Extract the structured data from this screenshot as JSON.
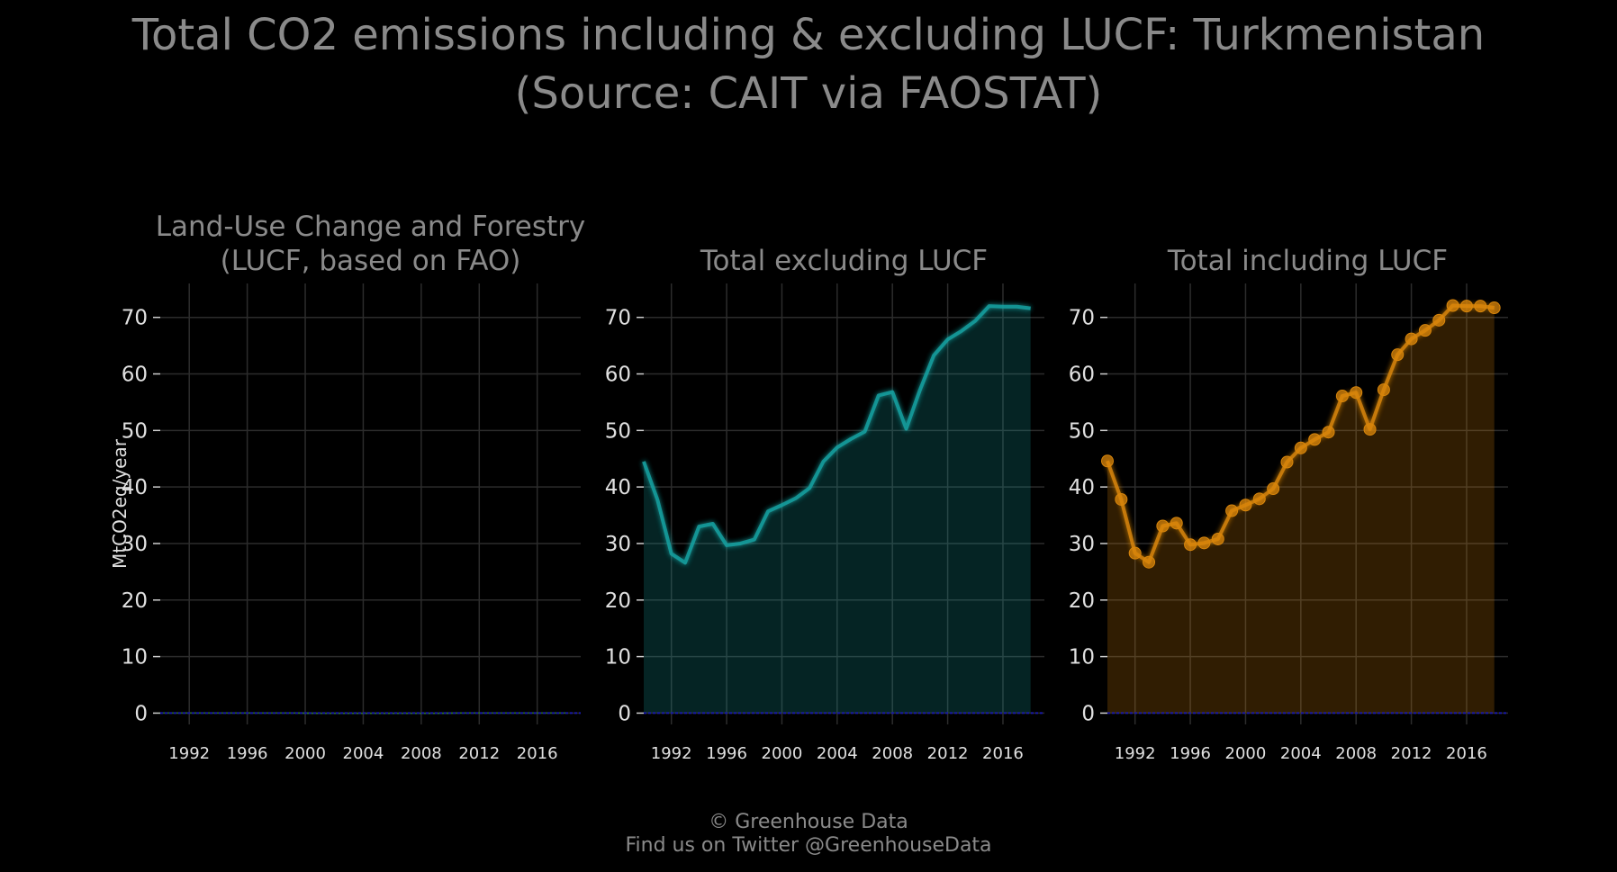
{
  "page": {
    "title_line_1": "Total CO2 emissions including & excluding LUCF: Turkmenistan",
    "title_line_2": "(Source: CAIT via FAOSTAT)",
    "footer_line_1": "© Greenhouse Data",
    "footer_line_2": "Find us on Twitter @GreenhouseData"
  },
  "colors": {
    "background": "#000000",
    "text": "#8a8a8a",
    "tick_text": "#e0e0e0",
    "grid": "#2c2c2c",
    "zero_line": "#1a1aa8",
    "lucf": "#2e7d32",
    "excl": "#17a3a3",
    "incl": "#d9860b"
  },
  "chart_data": [
    {
      "type": "area",
      "panel": "lucf",
      "title_lines": [
        "Land-Use Change and Forestry",
        "(LUCF, based on FAO)"
      ],
      "ylabel": "MtCO2eq/year",
      "xlim": [
        1990,
        2019
      ],
      "ylim": [
        -2,
        76
      ],
      "xticks": [
        1992,
        1996,
        2000,
        2004,
        2008,
        2012,
        2016
      ],
      "yticks": [
        0,
        10,
        20,
        30,
        40,
        50,
        60,
        70
      ],
      "grid": true,
      "markers": false,
      "series": [
        {
          "x": [
            1990,
            1991,
            1992,
            1993,
            1994,
            1995,
            1996,
            1997,
            1998,
            1999,
            2000,
            2001,
            2002,
            2003,
            2004,
            2005,
            2006,
            2007,
            2008,
            2009,
            2010,
            2011,
            2012,
            2013,
            2014,
            2015,
            2016,
            2017,
            2018
          ],
          "values": [
            0.1,
            0.1,
            0.1,
            0.1,
            0.1,
            0.1,
            0.1,
            0.1,
            0.1,
            0.1,
            0.0,
            -0.1,
            -0.1,
            -0.1,
            -0.1,
            -0.1,
            -0.1,
            -0.1,
            -0.1,
            -0.1,
            0.0,
            0.1,
            0.1,
            0.1,
            0.1,
            0.1,
            0.1,
            0.1,
            0.1
          ]
        }
      ]
    },
    {
      "type": "area",
      "panel": "excl",
      "title_lines": [
        "Total excluding LUCF"
      ],
      "ylabel": "",
      "xlim": [
        1990,
        2019
      ],
      "ylim": [
        -2,
        76
      ],
      "xticks": [
        1992,
        1996,
        2000,
        2004,
        2008,
        2012,
        2016
      ],
      "yticks": [
        0,
        10,
        20,
        30,
        40,
        50,
        60,
        70
      ],
      "grid": true,
      "markers": false,
      "series": [
        {
          "x": [
            1990,
            1991,
            1992,
            1993,
            1994,
            1995,
            1996,
            1997,
            1998,
            1999,
            2000,
            2001,
            2002,
            2003,
            2004,
            2005,
            2006,
            2007,
            2008,
            2009,
            2010,
            2011,
            2012,
            2013,
            2014,
            2015,
            2016,
            2017,
            2018
          ],
          "values": [
            44.5,
            37.7,
            28.2,
            26.6,
            33.0,
            33.5,
            29.7,
            30.0,
            30.7,
            35.7,
            36.8,
            38.0,
            39.8,
            44.5,
            47.0,
            48.5,
            49.8,
            56.2,
            56.8,
            50.3,
            57.2,
            63.3,
            66.1,
            67.6,
            69.4,
            72.0,
            71.9,
            71.9,
            71.6
          ]
        }
      ]
    },
    {
      "type": "area",
      "panel": "incl",
      "title_lines": [
        "Total including LUCF"
      ],
      "ylabel": "",
      "xlim": [
        1990,
        2019
      ],
      "ylim": [
        -2,
        76
      ],
      "xticks": [
        1992,
        1996,
        2000,
        2004,
        2008,
        2012,
        2016
      ],
      "yticks": [
        0,
        10,
        20,
        30,
        40,
        50,
        60,
        70
      ],
      "grid": true,
      "markers": true,
      "series": [
        {
          "x": [
            1990,
            1991,
            1992,
            1993,
            1994,
            1995,
            1996,
            1997,
            1998,
            1999,
            2000,
            2001,
            2002,
            2003,
            2004,
            2005,
            2006,
            2007,
            2008,
            2009,
            2010,
            2011,
            2012,
            2013,
            2014,
            2015,
            2016,
            2017,
            2018
          ],
          "values": [
            44.6,
            37.8,
            28.3,
            26.7,
            33.1,
            33.6,
            29.8,
            30.1,
            30.8,
            35.8,
            36.8,
            37.9,
            39.7,
            44.4,
            46.9,
            48.4,
            49.7,
            56.1,
            56.7,
            50.2,
            57.2,
            63.4,
            66.2,
            67.7,
            69.5,
            72.1,
            72.0,
            72.0,
            71.7
          ]
        }
      ]
    }
  ]
}
